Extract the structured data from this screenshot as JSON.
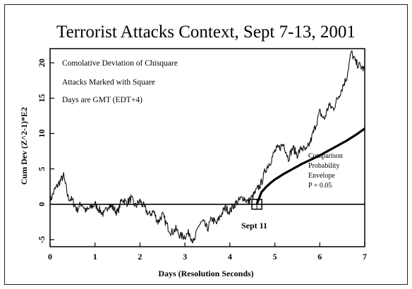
{
  "chart_data": {
    "type": "line",
    "title": "Terrorist Attacks Context, Sept 7-13, 2001",
    "xlabel": "Days (Resolution Seconds)",
    "ylabel": "Cum Dev (Z^2-1)*E2",
    "xlim": [
      0,
      7
    ],
    "ylim": [
      -6,
      22
    ],
    "xticks": [
      0,
      1,
      2,
      3,
      4,
      5,
      6,
      7
    ],
    "yticks": [
      -5,
      0,
      5,
      10,
      15,
      20
    ],
    "grid": false,
    "annotations": [
      "Comolative Deviation of Chisquare",
      "Attacks Marked with Square",
      "Days are GMT (EDT+4)"
    ],
    "envelope_label": [
      "Comparison",
      "Probability",
      "Envelope",
      "P = 0.05"
    ],
    "marker_label": "Sept 11",
    "marker": {
      "x": 4.6,
      "y": 0
    },
    "series": [
      {
        "values_x": [
          0,
          0.1,
          0.2,
          0.3,
          0.4,
          0.5,
          0.6,
          0.7,
          0.8,
          0.9,
          1.0,
          1.1,
          1.2,
          1.3,
          1.4,
          1.5,
          1.6,
          1.7,
          1.8,
          1.9,
          2.0,
          2.1,
          2.2,
          2.3,
          2.4,
          2.5,
          2.6,
          2.7,
          2.8,
          2.9,
          3.0,
          3.1,
          3.2,
          3.3,
          3.4,
          3.5,
          3.6,
          3.7,
          3.8,
          3.9,
          4.0,
          4.1,
          4.2,
          4.3,
          4.4,
          4.5,
          4.6,
          4.7,
          4.8,
          4.9,
          5.0,
          5.1,
          5.2,
          5.3,
          5.4,
          5.5,
          5.6,
          5.7,
          5.8,
          5.9,
          6.0,
          6.1,
          6.2,
          6.3,
          6.4,
          6.5,
          6.6,
          6.7,
          6.8,
          6.9,
          7.0
        ],
        "values_y": [
          0.5,
          2.0,
          3.0,
          4.0,
          1.0,
          0.5,
          -0.8,
          0.2,
          -1.0,
          -0.5,
          0.0,
          -0.8,
          -1.5,
          0.0,
          -0.5,
          -1.2,
          0.8,
          0.2,
          0.8,
          -0.3,
          0.5,
          -0.5,
          -1.5,
          -1.0,
          -2.5,
          -1.5,
          -3.0,
          -4.0,
          -3.5,
          -4.5,
          -4.5,
          -4.0,
          -5.5,
          -3.0,
          -2.5,
          -3.5,
          -2.0,
          -2.8,
          -1.5,
          -0.5,
          -1.0,
          0.0,
          0.5,
          1.0,
          0.3,
          1.0,
          2.0,
          3.0,
          5.0,
          6.0,
          7.5,
          8.0,
          8.5,
          6.5,
          8.0,
          7.0,
          8.0,
          7.5,
          9.0,
          11.0,
          13.0,
          12.0,
          14.0,
          13.5,
          15.0,
          16.5,
          18.0,
          21.5,
          20.0,
          19.5,
          19.0
        ]
      },
      {
        "values_x": [
          4.6,
          4.7,
          4.8,
          4.9,
          5.0,
          5.2,
          5.4,
          5.6,
          5.8,
          6.0,
          6.2,
          6.4,
          6.6,
          6.8,
          7.0
        ],
        "values_y": [
          0,
          1.7,
          2.4,
          3.0,
          3.5,
          4.3,
          5.0,
          5.7,
          6.3,
          6.9,
          7.6,
          8.3,
          9.0,
          9.8,
          10.7
        ]
      }
    ]
  }
}
